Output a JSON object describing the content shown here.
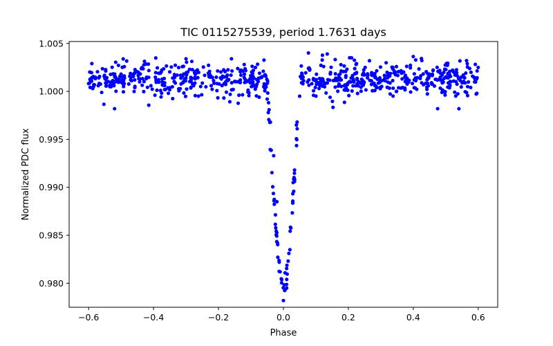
{
  "chart_data": {
    "type": "scatter",
    "title": "TIC 0115275539, period 1.7631 days",
    "xlabel": "Phase",
    "ylabel": "Normalized PDC flux",
    "xlim": [
      -0.66,
      0.66
    ],
    "ylim": [
      0.9775,
      1.0052
    ],
    "xticks": [
      -0.6,
      -0.4,
      -0.2,
      0.0,
      0.2,
      0.4,
      0.6
    ],
    "xtick_labels": [
      "−0.6",
      "−0.4",
      "−0.2",
      "0.0",
      "0.2",
      "0.4",
      "0.6"
    ],
    "yticks": [
      0.98,
      0.985,
      0.99,
      0.995,
      1.0,
      1.005
    ],
    "ytick_labels": [
      "0.980",
      "0.985",
      "0.990",
      "0.995",
      "1.000",
      "1.005"
    ],
    "grid": false,
    "series": [
      {
        "name": "PDC flux",
        "color": "#0000ff",
        "transit": {
          "center": 0.0,
          "depth": 0.0219,
          "half_width": 0.05,
          "baseline": 1.0013,
          "scatter": 0.0009
        },
        "phase_range": [
          -0.6,
          0.6
        ],
        "n_points": 780,
        "sample_points": [
          [
            -0.595,
            1.0012
          ],
          [
            -0.59,
            1.0029
          ],
          [
            -0.585,
            1.0005
          ],
          [
            -0.52,
            0.9982
          ],
          [
            -0.3,
            1.0034
          ],
          [
            -0.16,
            1.0034
          ],
          [
            -0.062,
            1.0021
          ],
          [
            -0.05,
            0.9992
          ],
          [
            -0.04,
            0.9968
          ],
          [
            -0.03,
            0.9933
          ],
          [
            -0.02,
            0.9885
          ],
          [
            -0.01,
            0.9812
          ],
          [
            0.0,
            0.9782
          ],
          [
            0.01,
            0.9795
          ],
          [
            0.02,
            0.9835
          ],
          [
            0.03,
            0.9905
          ],
          [
            0.04,
            0.9965
          ],
          [
            0.05,
            0.9995
          ],
          [
            0.06,
            1.0008
          ],
          [
            0.135,
            1.0039
          ],
          [
            0.21,
            1.0035
          ],
          [
            0.265,
            1.0032
          ],
          [
            0.475,
            0.9982
          ],
          [
            0.6,
            1.0025
          ]
        ]
      }
    ]
  }
}
